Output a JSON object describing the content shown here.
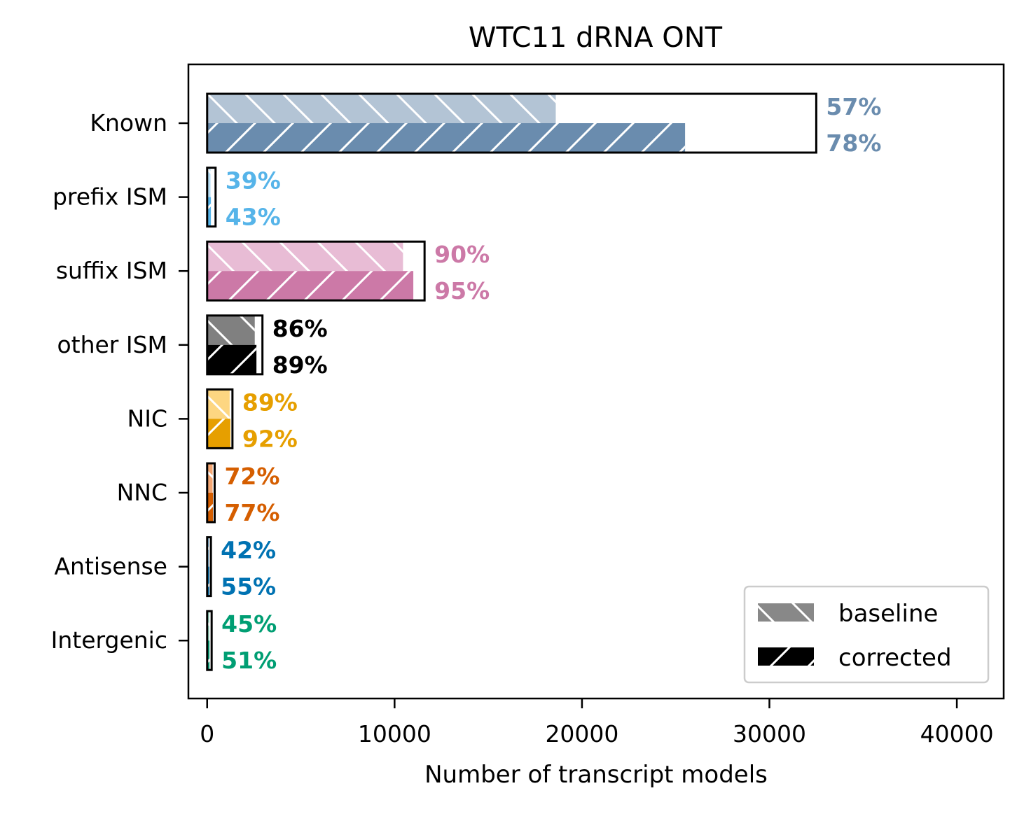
{
  "chart_data": {
    "type": "bar",
    "orientation": "horizontal",
    "title": "WTC11 dRNA ONT",
    "xlabel": "Number of transcript models",
    "ylabel": "",
    "xlim": [
      -1000,
      42500
    ],
    "x_ticks": [
      0,
      10000,
      20000,
      30000,
      40000
    ],
    "x_tick_labels": [
      "0",
      "10000",
      "20000",
      "30000",
      "40000"
    ],
    "grid": false,
    "legend_position": "lower-right",
    "legend": [
      {
        "label": "baseline",
        "hatch": "backslash",
        "color": "#888888"
      },
      {
        "label": "corrected",
        "hatch": "slash",
        "color": "#000000"
      }
    ],
    "categories": [
      {
        "name": "Known",
        "total": 32500,
        "baseline": 18600,
        "corrected": 25500,
        "baseline_pct": "57%",
        "corrected_pct": "78%",
        "color_light": "#b3c4d5",
        "color_dark": "#6a8cae",
        "label_color": "#6a8cae"
      },
      {
        "name": "prefix ISM",
        "total": 450,
        "baseline": 180,
        "corrected": 200,
        "baseline_pct": "39%",
        "corrected_pct": "43%",
        "color_light": "#b7dff5",
        "color_dark": "#56b4e9",
        "label_color": "#56b4e9"
      },
      {
        "name": "suffix ISM",
        "total": 11600,
        "baseline": 10450,
        "corrected": 11000,
        "baseline_pct": "90%",
        "corrected_pct": "95%",
        "color_light": "#e8bcd5",
        "color_dark": "#cc79a7",
        "label_color": "#cc79a7"
      },
      {
        "name": "other ISM",
        "total": 2950,
        "baseline": 2540,
        "corrected": 2630,
        "baseline_pct": "86%",
        "corrected_pct": "89%",
        "color_light": "#808080",
        "color_dark": "#000000",
        "label_color": "#000000"
      },
      {
        "name": "NIC",
        "total": 1350,
        "baseline": 1200,
        "corrected": 1240,
        "baseline_pct": "89%",
        "corrected_pct": "92%",
        "color_light": "#fdd681",
        "color_dark": "#e69f00",
        "label_color": "#e69f00"
      },
      {
        "name": "NNC",
        "total": 400,
        "baseline": 290,
        "corrected": 310,
        "baseline_pct": "72%",
        "corrected_pct": "77%",
        "color_light": "#f4a774",
        "color_dark": "#d55e00",
        "label_color": "#d55e00"
      },
      {
        "name": "Antisense",
        "total": 200,
        "baseline": 85,
        "corrected": 110,
        "baseline_pct": "42%",
        "corrected_pct": "55%",
        "color_light": "#7fb8dc",
        "color_dark": "#0072b2",
        "label_color": "#0072b2"
      },
      {
        "name": "Intergenic",
        "total": 240,
        "baseline": 110,
        "corrected": 125,
        "baseline_pct": "45%",
        "corrected_pct": "51%",
        "color_light": "#9adbc3",
        "color_dark": "#009e73",
        "label_color": "#009e73"
      }
    ]
  }
}
